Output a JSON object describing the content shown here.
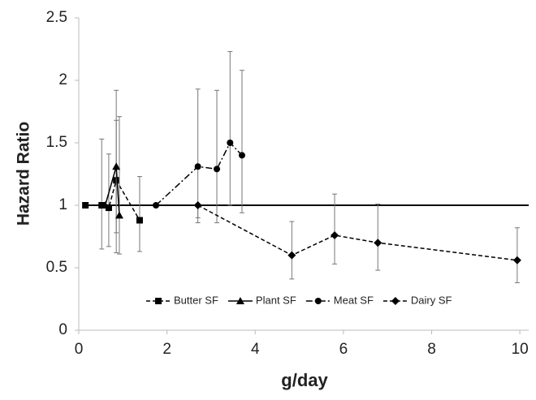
{
  "chart_data": {
    "type": "line",
    "ylabel": "Hazard Ratio",
    "xlabel": "g/day",
    "xlim": [
      0,
      10.2
    ],
    "ylim": [
      0,
      2.5
    ],
    "xticks": [
      0,
      2,
      4,
      6,
      8,
      10
    ],
    "yticks": [
      0,
      0.5,
      1,
      1.5,
      2,
      2.5
    ],
    "hline": 1,
    "color": "#000000",
    "legend": "bottom",
    "series": [
      {
        "name": "Butter SF",
        "marker": "square",
        "dash": "dashed",
        "x": [
          0.15,
          0.52,
          0.68,
          0.85,
          1.38
        ],
        "values": [
          1.0,
          1.0,
          0.98,
          1.2,
          0.88
        ],
        "error_low": [
          null,
          0.65,
          0.67,
          0.78,
          0.63
        ],
        "error_high": [
          null,
          1.53,
          1.41,
          1.68,
          1.23
        ]
      },
      {
        "name": "Plant SF",
        "marker": "triangle",
        "dash": "solid",
        "x": [
          0.6,
          0.85,
          0.92
        ],
        "values": [
          1.0,
          1.31,
          0.92
        ],
        "error_low": [
          null,
          0.62,
          0.61
        ],
        "error_high": [
          null,
          1.92,
          1.71
        ]
      },
      {
        "name": "Meat SF",
        "marker": "circle",
        "dash": "dashdot",
        "x": [
          1.75,
          2.7,
          3.13,
          3.43,
          3.7
        ],
        "values": [
          1.0,
          1.31,
          1.29,
          1.5,
          1.4
        ],
        "error_low": [
          null,
          0.86,
          0.86,
          1.0,
          0.94
        ],
        "error_high": [
          null,
          1.93,
          1.92,
          2.23,
          2.08
        ]
      },
      {
        "name": "Dairy SF",
        "marker": "diamond",
        "dash": "dashed",
        "x": [
          2.7,
          4.83,
          5.8,
          6.78,
          9.94
        ],
        "values": [
          1.0,
          0.6,
          0.76,
          0.7,
          0.56
        ],
        "error_low": [
          0.9,
          0.41,
          0.53,
          0.48,
          0.38
        ],
        "error_high": [
          null,
          0.87,
          1.09,
          1.01,
          0.82
        ]
      }
    ]
  }
}
